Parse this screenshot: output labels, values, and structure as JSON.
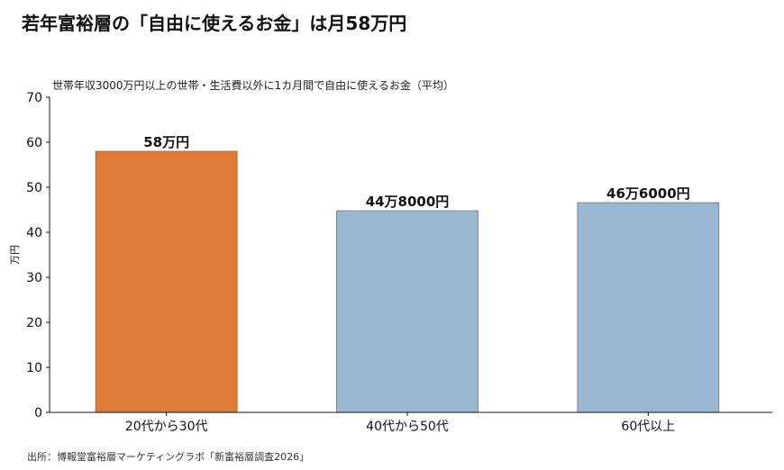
{
  "header": {
    "title": "若年富裕層の「自由に使えるお金」は月58万円"
  },
  "footer": {
    "source": "出所：博報堂富裕層マーケティングラボ「新富裕層調査2026」"
  },
  "chart_data": {
    "type": "bar",
    "title": "若年富裕層の「自由に使えるお金」は月58万円",
    "subtitle": "世帯年収3000万円以上の世帯・生活費以外に1カ月間で自由に使えるお金（平均）",
    "xlabel": "",
    "ylabel": "万円",
    "ylim": [
      0,
      70
    ],
    "yticks": [
      0,
      10,
      20,
      30,
      40,
      50,
      60,
      70
    ],
    "categories": [
      "20代から30代",
      "40代から50代",
      "60代以上"
    ],
    "values": [
      58,
      44.8,
      46.6
    ],
    "data_labels": [
      "58万円",
      "44万8000円",
      "46万6000円"
    ],
    "colors": [
      "#E07B39",
      "#9BB8D3",
      "#9BB8D3"
    ],
    "grid": false,
    "legend": "none"
  }
}
